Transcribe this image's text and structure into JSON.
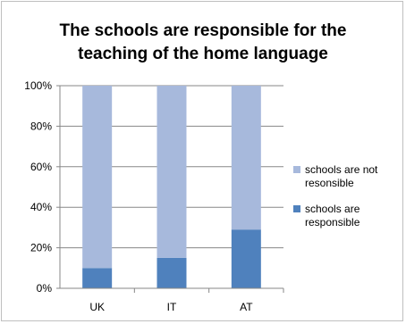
{
  "chart_data": {
    "type": "bar",
    "stacked": true,
    "percent_stacked": true,
    "title_lines": [
      "The schools are responsible for the",
      "teaching of the home language"
    ],
    "categories": [
      "UK",
      "IT",
      "AT"
    ],
    "series": [
      {
        "name_lines": [
          "schools are",
          "responsible"
        ],
        "values": [
          10,
          15,
          29
        ],
        "color": "#4f81bd"
      },
      {
        "name_lines": [
          "schools are not",
          "resonsible"
        ],
        "values": [
          90,
          85,
          71
        ],
        "color": "#a7b9dc"
      }
    ],
    "ylim": [
      0,
      100
    ],
    "yticks": [
      "0%",
      "20%",
      "40%",
      "60%",
      "80%",
      "100%"
    ],
    "grid": true,
    "legend_position": "right"
  }
}
